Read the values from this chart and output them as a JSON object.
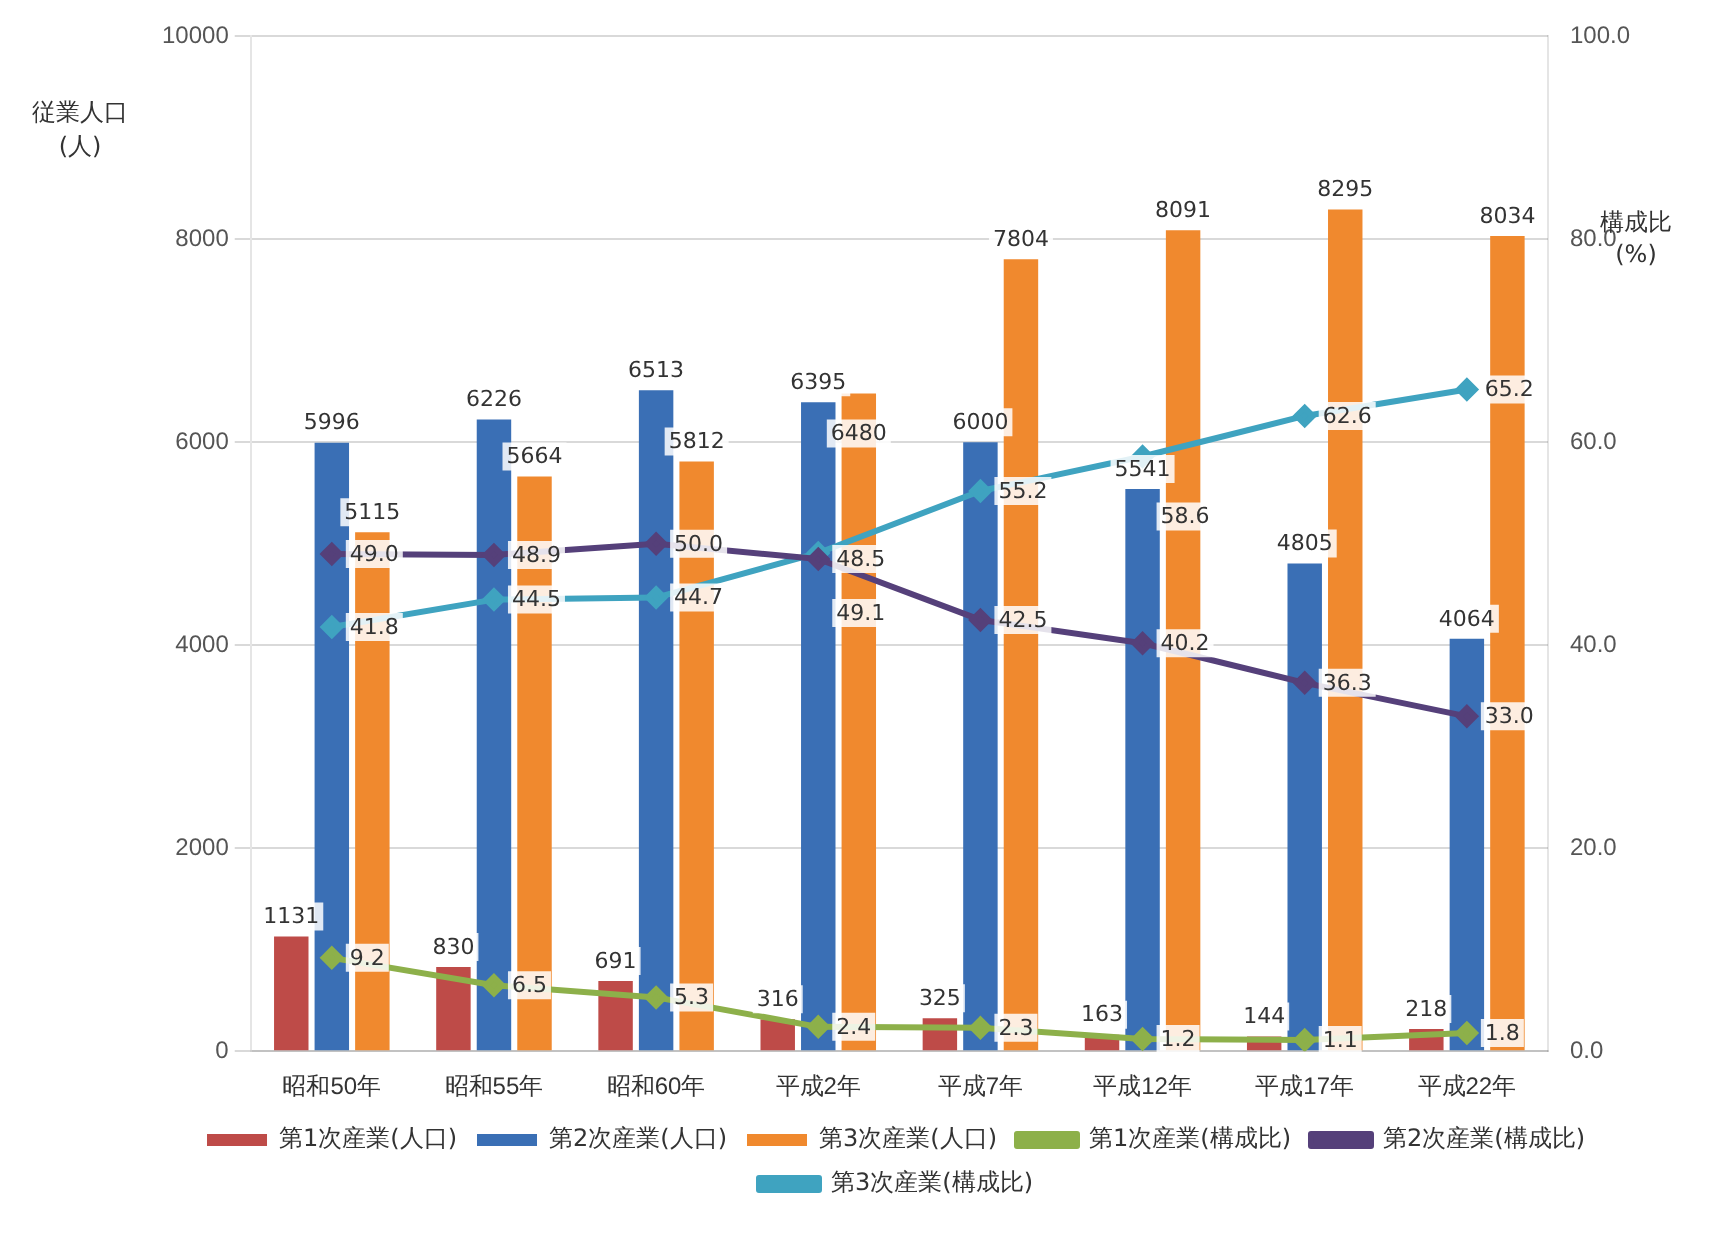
{
  "chart_data": {
    "type": "bar",
    "ylabel": "従業人口\n(人)",
    "y2label": "構成比\n(%)",
    "categories": [
      "昭和50年",
      "昭和55年",
      "昭和60年",
      "平成2年",
      "平成7年",
      "平成12年",
      "平成17年",
      "平成22年"
    ],
    "series": [
      {
        "name": "第1次産業(人口)",
        "color": "#be4b48",
        "values": [
          1131,
          830,
          691,
          316,
          325,
          163,
          144,
          218
        ],
        "value_labels": [
          "1131",
          "830",
          "691",
          "316",
          "325",
          "163",
          "144",
          "218"
        ]
      },
      {
        "name": "第2次産業(人口)",
        "color": "#3a6fb5",
        "values": [
          5996,
          6226,
          6513,
          6395,
          6000,
          5541,
          4805,
          4064
        ],
        "value_labels": [
          "5996",
          "6226",
          "6513",
          "6395",
          "6000",
          "5541",
          "4805",
          "4064"
        ]
      },
      {
        "name": "第3次産業(人口)",
        "color": "#f0892e",
        "values": [
          5115,
          5664,
          5812,
          6480,
          7804,
          8091,
          8295,
          8034
        ],
        "value_labels": [
          "5115",
          "5664",
          "5812",
          "6480",
          "7804",
          "8091",
          "8295",
          "8034"
        ]
      },
      {
        "name": "第1次産業(構成比)",
        "type": "line",
        "axis": "y2",
        "color": "#8db04a",
        "values": [
          9.2,
          6.5,
          5.3,
          2.4,
          2.3,
          1.2,
          1.1,
          1.8
        ],
        "value_labels": [
          "9.2",
          "6.5",
          "5.3",
          "2.4",
          "2.3",
          "1.2",
          "1.1",
          "1.8"
        ]
      },
      {
        "name": "第2次産業(構成比)",
        "type": "line",
        "axis": "y2",
        "color": "#55407a",
        "values": [
          49.0,
          48.9,
          50.0,
          48.5,
          42.5,
          40.2,
          36.3,
          33.0
        ],
        "value_labels": [
          "49.0",
          "48.9",
          "50.0",
          "48.5",
          "42.5",
          "40.2",
          "36.3",
          "33.0"
        ]
      },
      {
        "name": "第3次産業(構成比)",
        "type": "line",
        "axis": "y2",
        "color": "#3fa3c0",
        "values": [
          41.8,
          44.5,
          44.7,
          49.1,
          55.2,
          58.6,
          62.6,
          65.2
        ],
        "value_labels": [
          "41.8",
          "44.5",
          "44.7",
          "49.1",
          "55.2",
          "58.6",
          "62.6",
          "65.2"
        ]
      }
    ],
    "ylim": [
      0,
      10000
    ],
    "yticks": [
      0,
      2000,
      4000,
      6000,
      8000,
      10000
    ],
    "y2lim": [
      0,
      100
    ],
    "y2ticks": [
      {
        "value": 0,
        "label": "0.0"
      },
      {
        "value": 20,
        "label": "20.0"
      },
      {
        "value": 40,
        "label": "40.0"
      },
      {
        "value": 60,
        "label": "60.0"
      },
      {
        "value": 80,
        "label": "80.0"
      },
      {
        "value": 100,
        "label": "100.0"
      }
    ],
    "grid": "y",
    "legend": "bottom",
    "marker": "diamond"
  }
}
